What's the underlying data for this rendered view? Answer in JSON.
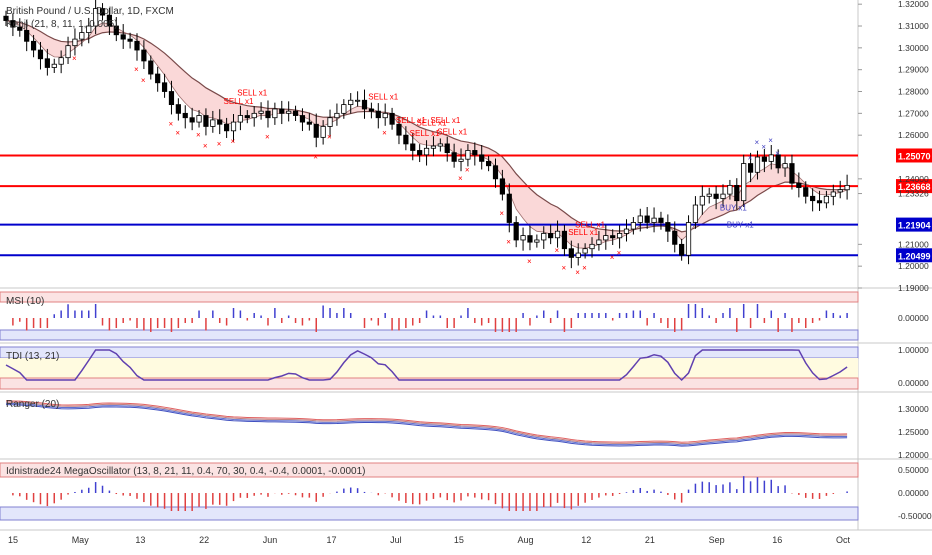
{
  "header": {
    "symbol_title": "British Pound / U.S. Dollar, 1D, FXCM",
    "indicator": "Kenji (21, 8, 11, 1, 0.005)"
  },
  "colors": {
    "bull_candle": "#ffffff",
    "bear_candle": "#000000",
    "resistance": "#ff0000",
    "support": "#0000cc",
    "cloud_fill": "#f9d4d4",
    "cloud_fill_green": "#d4efd4",
    "sell_marker": "#ff0000",
    "buy_marker": "#4040c0"
  },
  "chart_data": [
    {
      "type": "candlestick",
      "title": "British Pound / U.S. Dollar, 1D, FXCM",
      "ylim": [
        1.19,
        1.321
      ],
      "y_ticks": [
        "1.32000",
        "1.31000",
        "1.30000",
        "1.29000",
        "1.28000",
        "1.27000",
        "1.26000",
        "1.24000",
        "1.23326",
        "1.21000",
        "1.20000",
        "1.19000"
      ],
      "horizontal_lines": [
        {
          "value": 1.2507,
          "label": "1.25070",
          "color": "#ff0000"
        },
        {
          "value": 1.23668,
          "label": "1.23668",
          "color": "#ff0000"
        },
        {
          "value": 1.21904,
          "label": "1.21904",
          "color": "#0000cc"
        },
        {
          "value": 1.20499,
          "label": "1.20499",
          "color": "#0000cc"
        }
      ],
      "annotations": [
        "SELL x1",
        "SELL x1",
        "SELL x1",
        "SELL x1",
        "SELL x1",
        "SELL x1",
        "SELL x1",
        "SELL x1",
        "SELL x1",
        "SELL x1",
        "BUY x1",
        "BUY x1"
      ],
      "close": [
        1.3125,
        1.3095,
        1.308,
        1.303,
        1.299,
        1.295,
        1.291,
        1.2925,
        1.2955,
        1.301,
        1.304,
        1.307,
        1.31,
        1.318,
        1.315,
        1.31,
        1.306,
        1.304,
        1.303,
        1.299,
        1.294,
        1.288,
        1.284,
        1.28,
        1.274,
        1.27,
        1.268,
        1.266,
        1.269,
        1.264,
        1.267,
        1.265,
        1.262,
        1.266,
        1.269,
        1.268,
        1.27,
        1.271,
        1.268,
        1.272,
        1.27,
        1.271,
        1.269,
        1.266,
        1.265,
        1.259,
        1.264,
        1.268,
        1.27,
        1.274,
        1.276,
        1.276,
        1.272,
        1.271,
        1.268,
        1.27,
        1.265,
        1.26,
        1.256,
        1.253,
        1.251,
        1.254,
        1.255,
        1.256,
        1.252,
        1.248,
        1.249,
        1.253,
        1.251,
        1.248,
        1.246,
        1.24,
        1.233,
        1.22,
        1.212,
        1.214,
        1.211,
        1.212,
        1.215,
        1.213,
        1.216,
        1.208,
        1.204,
        1.206,
        1.208,
        1.21,
        1.212,
        1.214,
        1.213,
        1.215,
        1.217,
        1.22,
        1.223,
        1.22,
        1.222,
        1.22,
        1.216,
        1.21,
        1.205,
        1.22,
        1.228,
        1.232,
        1.233,
        1.231,
        1.233,
        1.237,
        1.23,
        1.247,
        1.243,
        1.25,
        1.248,
        1.251,
        1.245,
        1.247,
        1.238,
        1.236,
        1.232,
        1.23,
        1.229,
        1.232,
        1.234,
        1.235,
        1.237
      ],
      "rsi_ticks": [
        "0.00000"
      ],
      "tdi_ticks": [
        "1.00000",
        "0.00000"
      ],
      "ranger_ticks": [
        "1.30000",
        "1.25000",
        "1.20000"
      ],
      "osc_ticks": [
        "0.50000",
        "0.00000",
        "-0.50000"
      ],
      "x_labels": [
        "15",
        "May",
        "13",
        "22",
        "Jun",
        "17",
        "Jul",
        "15",
        "Aug",
        "12",
        "21",
        "Sep",
        "16",
        "Oct"
      ]
    }
  ],
  "panels": {
    "msi": "MSI (10)",
    "tdi": "TDI (13, 21)",
    "ranger": "Ranger (20)",
    "osc": "Idnistrade24 MegaOscillator (13, 8, 21, 11, 0.4, 70, 30, 0.4, -0.4, 0.0001, -0.0001)"
  }
}
